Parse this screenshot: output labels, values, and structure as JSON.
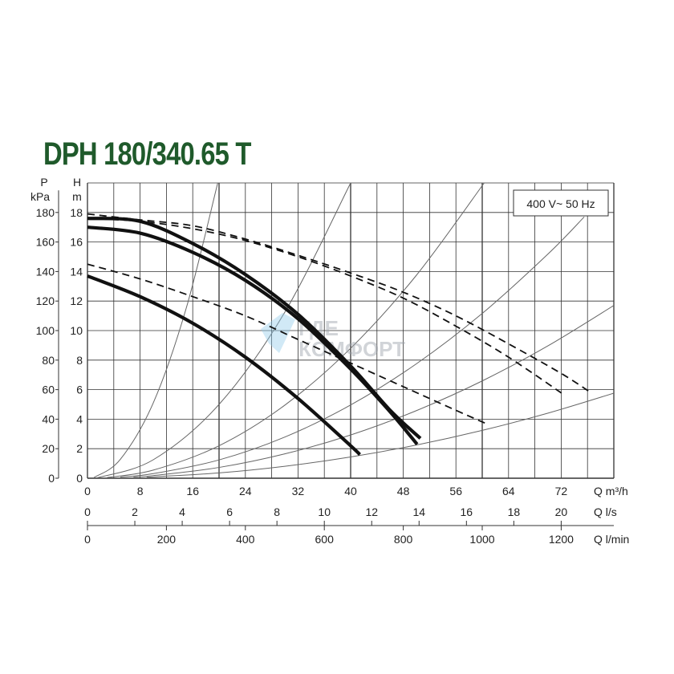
{
  "chart_data": {
    "type": "line",
    "title": "DPH 180/340.65 T",
    "legend_box": "400 V~ 50 Hz",
    "watermark": "ГДЕ КОМФОРТ",
    "grid": true,
    "x_axis": {
      "label": "Q m³/h",
      "range": [
        0,
        80
      ],
      "ticks": [
        0,
        8,
        16,
        24,
        32,
        40,
        48,
        56,
        64,
        72
      ]
    },
    "y_axis_left_inner": {
      "label_top": "H",
      "label_unit": "m",
      "range": [
        0,
        20
      ],
      "ticks": [
        0,
        2,
        4,
        6,
        8,
        10,
        12,
        14,
        16,
        18
      ]
    },
    "y_axis_left_outer": {
      "label_top": "P",
      "label_unit": "kPa",
      "ticks": [
        0,
        20,
        40,
        60,
        80,
        100,
        120,
        140,
        160,
        180
      ]
    },
    "x_axis_2": {
      "label": "Q l/s",
      "ticks": [
        0,
        2,
        4,
        6,
        8,
        10,
        12,
        14,
        16,
        18,
        20
      ]
    },
    "x_axis_3": {
      "label": "Q l/min",
      "ticks": [
        0,
        200,
        400,
        600,
        800,
        1000,
        1200
      ]
    },
    "colors": {
      "title": "#1f5a2b",
      "curves": "#111111",
      "system_curves": "#666666",
      "grid": "#333333"
    },
    "series": [
      {
        "style": "solid",
        "points": [
          [
            0,
            17.6
          ],
          [
            8,
            17.4
          ],
          [
            16,
            15.9
          ],
          [
            24,
            13.8
          ],
          [
            32,
            11.1
          ],
          [
            40,
            7.6
          ],
          [
            46,
            4.6
          ],
          [
            50.6,
            2.7
          ]
        ]
      },
      {
        "style": "solid",
        "points": [
          [
            0,
            17.0
          ],
          [
            8,
            16.6
          ],
          [
            16,
            15.3
          ],
          [
            24,
            13.4
          ],
          [
            32,
            10.8
          ],
          [
            40,
            7.4
          ],
          [
            46,
            4.5
          ],
          [
            50.1,
            2.3
          ]
        ]
      },
      {
        "style": "solid",
        "points": [
          [
            0,
            13.7
          ],
          [
            8,
            12.3
          ],
          [
            16,
            10.5
          ],
          [
            24,
            8.2
          ],
          [
            32,
            5.4
          ],
          [
            40,
            2.2
          ],
          [
            41.4,
            1.6
          ]
        ]
      },
      {
        "style": "dashed",
        "points": [
          [
            0,
            17.9
          ],
          [
            8,
            17.5
          ],
          [
            16,
            17.1
          ],
          [
            24,
            16.2
          ],
          [
            32,
            15.1
          ],
          [
            40,
            13.9
          ],
          [
            48,
            12.6
          ],
          [
            56,
            11.0
          ],
          [
            64,
            9.1
          ],
          [
            72,
            7.1
          ],
          [
            76.5,
            5.8
          ]
        ]
      },
      {
        "style": "dashed",
        "points": [
          [
            0,
            17.6
          ],
          [
            8,
            17.4
          ],
          [
            16,
            16.9
          ],
          [
            24,
            16.1
          ],
          [
            32,
            15.0
          ],
          [
            40,
            13.7
          ],
          [
            48,
            12.2
          ],
          [
            56,
            10.3
          ],
          [
            64,
            8.2
          ],
          [
            72.6,
            5.6
          ]
        ]
      },
      {
        "style": "dashed",
        "points": [
          [
            0,
            14.5
          ],
          [
            8,
            13.5
          ],
          [
            16,
            12.3
          ],
          [
            24,
            11.0
          ],
          [
            32,
            9.4
          ],
          [
            40,
            7.8
          ],
          [
            48,
            6.2
          ],
          [
            56,
            4.6
          ],
          [
            60.6,
            3.7
          ]
        ]
      }
    ],
    "system_curves": [
      {
        "points": [
          [
            1,
            0.05
          ],
          [
            5,
            1.28
          ],
          [
            10,
            5.1
          ],
          [
            15,
            11.5
          ],
          [
            19.8,
            20
          ]
        ]
      },
      {
        "points": [
          [
            1.5,
            0.03
          ],
          [
            10,
            1.25
          ],
          [
            20,
            5
          ],
          [
            30,
            11.25
          ],
          [
            40,
            20
          ]
        ]
      },
      {
        "points": [
          [
            3,
            0.05
          ],
          [
            10,
            0.55
          ],
          [
            20,
            2.2
          ],
          [
            30,
            4.95
          ],
          [
            40,
            8.8
          ],
          [
            50,
            13.75
          ],
          [
            60.3,
            20
          ]
        ]
      },
      {
        "points": [
          [
            5,
            0.08
          ],
          [
            10,
            0.31
          ],
          [
            20,
            1.24
          ],
          [
            30,
            2.79
          ],
          [
            40,
            4.96
          ],
          [
            50,
            7.75
          ],
          [
            60,
            11.16
          ],
          [
            70,
            15.19
          ],
          [
            75.5,
            17.7
          ]
        ]
      },
      {
        "points": [
          [
            7,
            0.09
          ],
          [
            10,
            0.18
          ],
          [
            20,
            0.73
          ],
          [
            30,
            1.65
          ],
          [
            40,
            2.93
          ],
          [
            50,
            4.58
          ],
          [
            60,
            6.59
          ],
          [
            70,
            8.97
          ],
          [
            80,
            11.7
          ]
        ]
      },
      {
        "points": [
          [
            9,
            0.07
          ],
          [
            20,
            0.36
          ],
          [
            30,
            0.81
          ],
          [
            40,
            1.44
          ],
          [
            50,
            2.25
          ],
          [
            60,
            3.24
          ],
          [
            70,
            4.41
          ],
          [
            80,
            5.76
          ]
        ]
      }
    ]
  }
}
